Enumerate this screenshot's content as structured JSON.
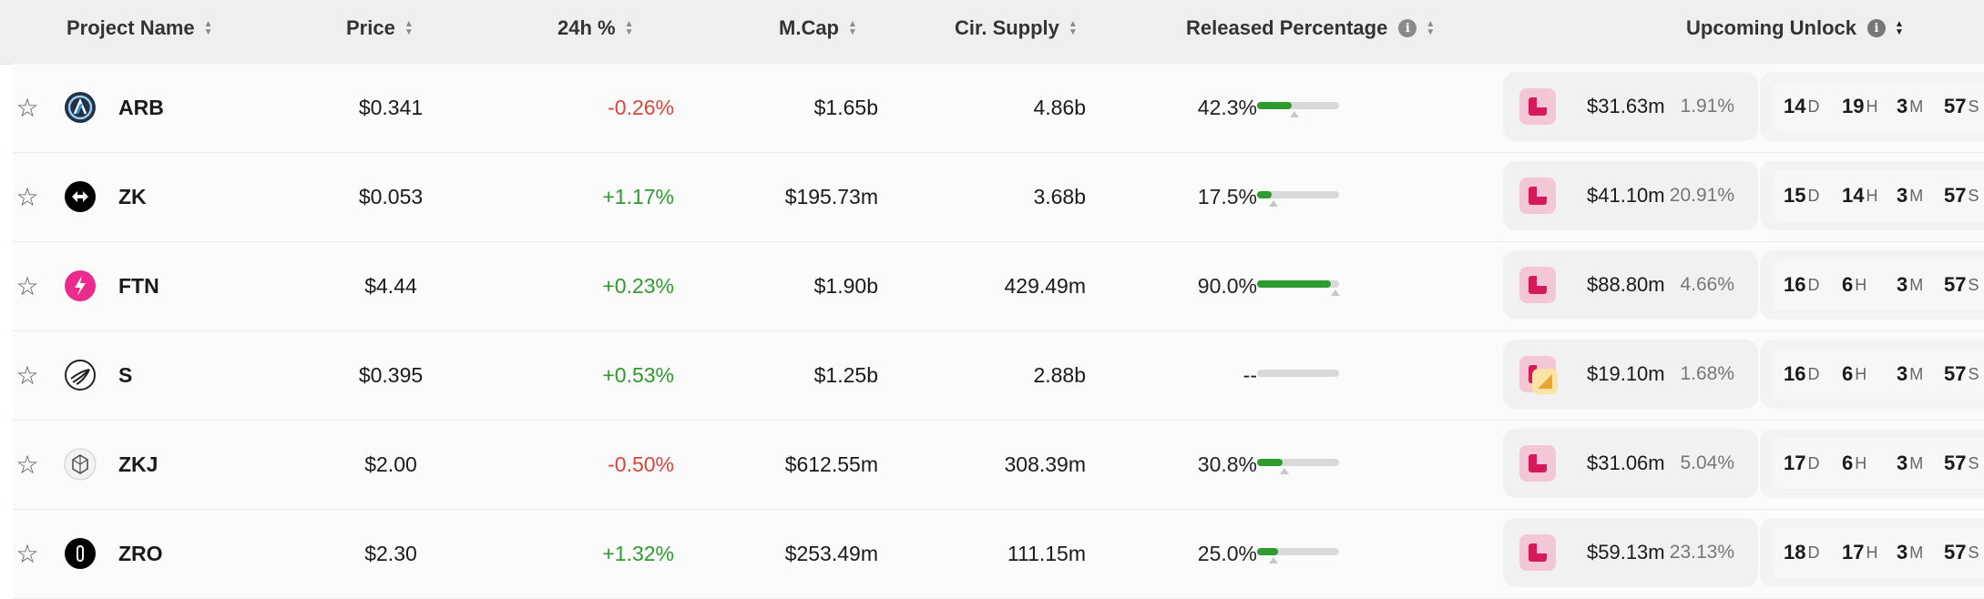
{
  "colors": {
    "negative": "#d8463b",
    "positive": "#2e9b2e",
    "header_bg": "#efefef"
  },
  "header": {
    "project_name": "Project Name",
    "price": "Price",
    "change_24h": "24h %",
    "mcap": "M.Cap",
    "circ_supply": "Cir. Supply",
    "released": "Released Percentage",
    "upcoming_unlock": "Upcoming Unlock"
  },
  "rows": [
    {
      "symbol": "ARB",
      "logo_icon": "arbitrum-icon",
      "price": "$0.341",
      "change": "-0.26%",
      "change_dir": "down",
      "mcap": "$1.65b",
      "supply": "4.86b",
      "released_pct": "42.3%",
      "released_fill": 42.3,
      "marker": 45,
      "unlock_value": "$31.63m",
      "unlock_pct": "1.91%",
      "double_icon": false,
      "timer": {
        "d": "14",
        "h": "19",
        "m": "3",
        "s": "57"
      }
    },
    {
      "symbol": "ZK",
      "logo_icon": "zksync-icon",
      "price": "$0.053",
      "change": "+1.17%",
      "change_dir": "up",
      "mcap": "$195.73m",
      "supply": "3.68b",
      "released_pct": "17.5%",
      "released_fill": 17.5,
      "marker": 20,
      "unlock_value": "$41.10m",
      "unlock_pct": "20.91%",
      "double_icon": false,
      "timer": {
        "d": "15",
        "h": "14",
        "m": "3",
        "s": "57"
      }
    },
    {
      "symbol": "FTN",
      "logo_icon": "fasttoken-icon",
      "price": "$4.44",
      "change": "+0.23%",
      "change_dir": "up",
      "mcap": "$1.90b",
      "supply": "429.49m",
      "released_pct": "90.0%",
      "released_fill": 90.0,
      "marker": 95,
      "unlock_value": "$88.80m",
      "unlock_pct": "4.66%",
      "double_icon": false,
      "timer": {
        "d": "16",
        "h": "6",
        "m": "3",
        "s": "57"
      }
    },
    {
      "symbol": "S",
      "logo_icon": "sonic-icon",
      "price": "$0.395",
      "change": "+0.53%",
      "change_dir": "up",
      "mcap": "$1.25b",
      "supply": "2.88b",
      "released_pct": "--",
      "released_fill": 0,
      "marker": null,
      "unlock_value": "$19.10m",
      "unlock_pct": "1.68%",
      "double_icon": true,
      "timer": {
        "d": "16",
        "h": "6",
        "m": "3",
        "s": "57"
      }
    },
    {
      "symbol": "ZKJ",
      "logo_icon": "polyhedra-icon",
      "price": "$2.00",
      "change": "-0.50%",
      "change_dir": "down",
      "mcap": "$612.55m",
      "supply": "308.39m",
      "released_pct": "30.8%",
      "released_fill": 30.8,
      "marker": 33,
      "unlock_value": "$31.06m",
      "unlock_pct": "5.04%",
      "double_icon": false,
      "timer": {
        "d": "17",
        "h": "6",
        "m": "3",
        "s": "57"
      }
    },
    {
      "symbol": "ZRO",
      "logo_icon": "layerzero-icon",
      "price": "$2.30",
      "change": "+1.32%",
      "change_dir": "up",
      "mcap": "$253.49m",
      "supply": "111.15m",
      "released_pct": "25.0%",
      "released_fill": 25.0,
      "marker": 20,
      "unlock_value": "$59.13m",
      "unlock_pct": "23.13%",
      "double_icon": false,
      "timer": {
        "d": "18",
        "h": "17",
        "m": "3",
        "s": "57"
      }
    }
  ],
  "timer_units": {
    "d": "D",
    "h": "H",
    "m": "M",
    "s": "S"
  }
}
